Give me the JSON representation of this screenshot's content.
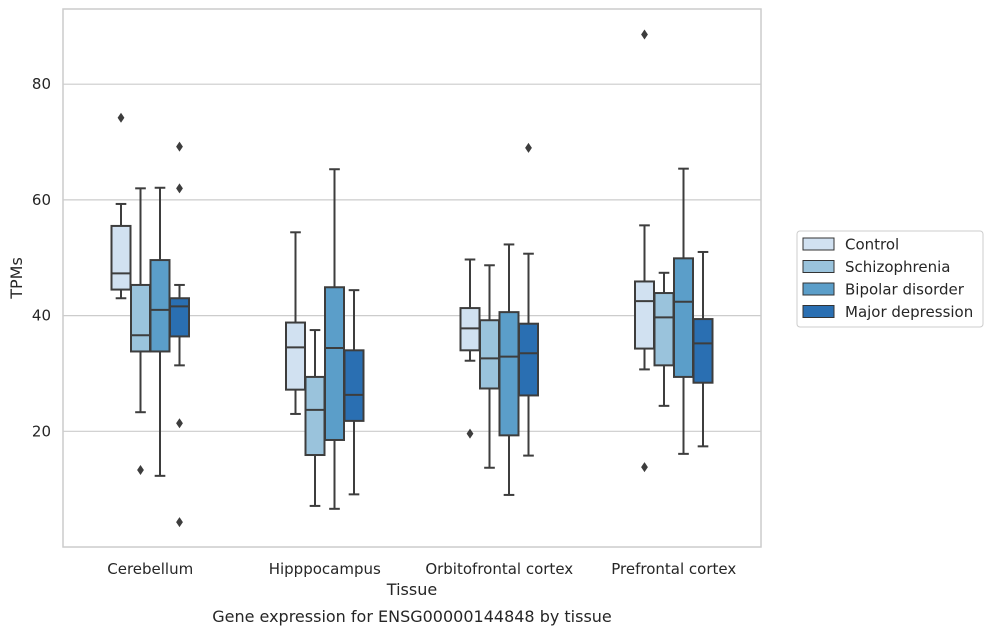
{
  "chart_data": {
    "type": "box",
    "caption": "Gene expression for ENSG00000144848 by tissue",
    "xlabel": "Tissue",
    "ylabel": "TPMs",
    "ylim": [
      0,
      93
    ],
    "yticks": [
      20,
      40,
      60,
      80
    ],
    "grid": true,
    "legend_position": "right",
    "categories": [
      "Cerebellum",
      "Hipppocampus",
      "Orbitofrontal cortex",
      "Prefrontal cortex"
    ],
    "series": [
      {
        "name": "Control",
        "color": "#d1e1f1",
        "boxes": [
          {
            "whislo": 43,
            "q1": 44.5,
            "med": 47.3,
            "q3": 55.5,
            "whishi": 59.3,
            "fliers": [
              74.2
            ]
          },
          {
            "whislo": 23,
            "q1": 27.2,
            "med": 34.5,
            "q3": 38.8,
            "whishi": 54.4,
            "fliers": []
          },
          {
            "whislo": 32.2,
            "q1": 34.0,
            "med": 37.8,
            "q3": 41.3,
            "whishi": 49.7,
            "fliers": [
              19.6
            ]
          },
          {
            "whislo": 30.7,
            "q1": 34.3,
            "med": 42.5,
            "q3": 45.9,
            "whishi": 55.6,
            "fliers": [
              13.8,
              88.6
            ]
          }
        ]
      },
      {
        "name": "Schizophrenia",
        "color": "#9ac3dc",
        "boxes": [
          {
            "whislo": 23.3,
            "q1": 33.8,
            "med": 36.6,
            "q3": 45.3,
            "whishi": 62.0,
            "fliers": [
              13.3
            ]
          },
          {
            "whislo": 7.1,
            "q1": 15.9,
            "med": 23.7,
            "q3": 29.4,
            "whishi": 37.5,
            "fliers": []
          },
          {
            "whislo": 13.7,
            "q1": 27.4,
            "med": 32.6,
            "q3": 39.2,
            "whishi": 48.7,
            "fliers": []
          },
          {
            "whislo": 24.4,
            "q1": 31.4,
            "med": 39.7,
            "q3": 43.9,
            "whishi": 47.4,
            "fliers": []
          }
        ]
      },
      {
        "name": "Bipolar disorder",
        "color": "#5b9ec9",
        "boxes": [
          {
            "whislo": 12.3,
            "q1": 33.8,
            "med": 41.0,
            "q3": 49.6,
            "whishi": 62.1,
            "fliers": []
          },
          {
            "whislo": 6.6,
            "q1": 18.5,
            "med": 34.4,
            "q3": 44.9,
            "whishi": 65.3,
            "fliers": []
          },
          {
            "whislo": 9.0,
            "q1": 19.3,
            "med": 32.9,
            "q3": 40.6,
            "whishi": 52.3,
            "fliers": []
          },
          {
            "whislo": 16.1,
            "q1": 29.4,
            "med": 42.4,
            "q3": 49.9,
            "whishi": 65.4,
            "fliers": []
          }
        ]
      },
      {
        "name": "Major depression",
        "color": "#2a6fb2",
        "boxes": [
          {
            "whislo": 31.4,
            "q1": 36.4,
            "med": 41.6,
            "q3": 43.0,
            "whishi": 45.3,
            "fliers": [
              69.2,
              62.0,
              21.4,
              4.3
            ]
          },
          {
            "whislo": 9.1,
            "q1": 21.8,
            "med": 26.3,
            "q3": 34.0,
            "whishi": 44.4,
            "fliers": []
          },
          {
            "whislo": 15.8,
            "q1": 26.2,
            "med": 33.5,
            "q3": 38.6,
            "whishi": 50.7,
            "fliers": [
              69.0
            ]
          },
          {
            "whislo": 17.4,
            "q1": 28.4,
            "med": 35.2,
            "q3": 39.4,
            "whishi": 51.0,
            "fliers": []
          }
        ]
      }
    ]
  }
}
